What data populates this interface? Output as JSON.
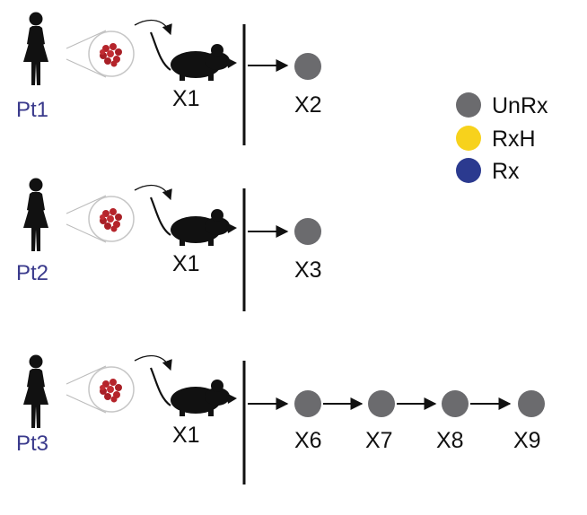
{
  "colors": {
    "patient_label": "#3a3a8c",
    "node_unrx": "#6b6b6e",
    "node_rxh": "#f7d21c",
    "node_rx": "#2b3a8f",
    "line": "#111111",
    "tumor": "#b5242b"
  },
  "icons": {
    "patient": "woman-silhouette-icon",
    "tumor": "tumor-cells-icon",
    "mouse": "mouse-silhouette-icon"
  },
  "legend": [
    {
      "label": "UnRx",
      "color": "#6b6b6e"
    },
    {
      "label": "RxH",
      "color": "#f7d21c"
    },
    {
      "label": "Rx",
      "color": "#2b3a8f"
    }
  ],
  "rows": [
    {
      "patient": "Pt1",
      "mouse_label": "X1",
      "chain": [
        {
          "label": "X2",
          "status": "UnRx"
        }
      ]
    },
    {
      "patient": "Pt2",
      "mouse_label": "X1",
      "chain": [
        {
          "label": "X3",
          "status": "UnRx"
        }
      ]
    },
    {
      "patient": "Pt3",
      "mouse_label": "X1",
      "chain": [
        {
          "label": "X6",
          "status": "UnRx"
        },
        {
          "label": "X7",
          "status": "UnRx"
        },
        {
          "label": "X8",
          "status": "UnRx"
        },
        {
          "label": "X9",
          "status": "UnRx"
        }
      ]
    }
  ]
}
